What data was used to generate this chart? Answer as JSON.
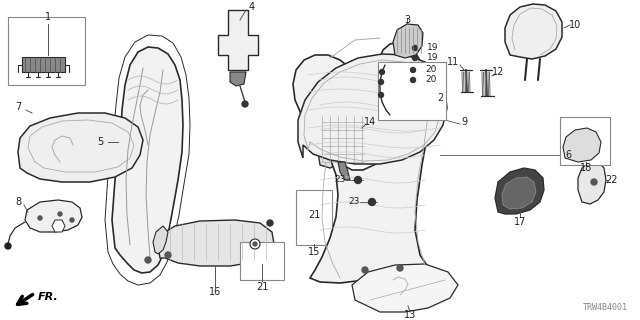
{
  "bg_color": "#ffffff",
  "diagram_color": "#2a2a2a",
  "light_gray": "#e8e8e8",
  "mid_gray": "#aaaaaa",
  "dark_gray": "#555555",
  "watermark": "TRW4B4001",
  "figsize": [
    6.4,
    3.2
  ],
  "dpi": 100
}
